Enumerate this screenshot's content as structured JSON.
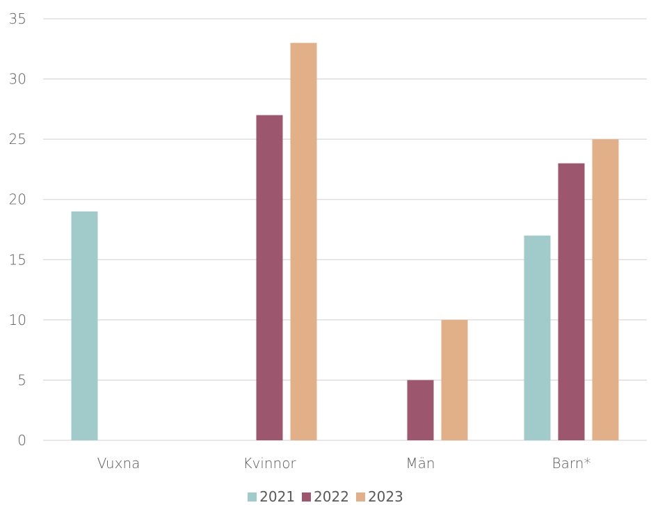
{
  "chart_data": {
    "type": "bar",
    "title": "",
    "xlabel": "",
    "ylabel": "",
    "categories": [
      "Vuxna",
      "Kvinnor",
      "Män",
      "Barn*"
    ],
    "series": [
      {
        "name": "2021",
        "color": "#a0cbca",
        "values": [
          19,
          null,
          null,
          17
        ]
      },
      {
        "name": "2022",
        "color": "#9c566e",
        "values": [
          null,
          27,
          5,
          23
        ]
      },
      {
        "name": "2023",
        "color": "#e2b088",
        "values": [
          null,
          33,
          10,
          25
        ]
      }
    ],
    "ylim": [
      0,
      35
    ],
    "yticks": [
      "0",
      "5",
      "10",
      "15",
      "20",
      "25",
      "30",
      "35"
    ],
    "grid": true,
    "legend_position": "bottom-center"
  }
}
